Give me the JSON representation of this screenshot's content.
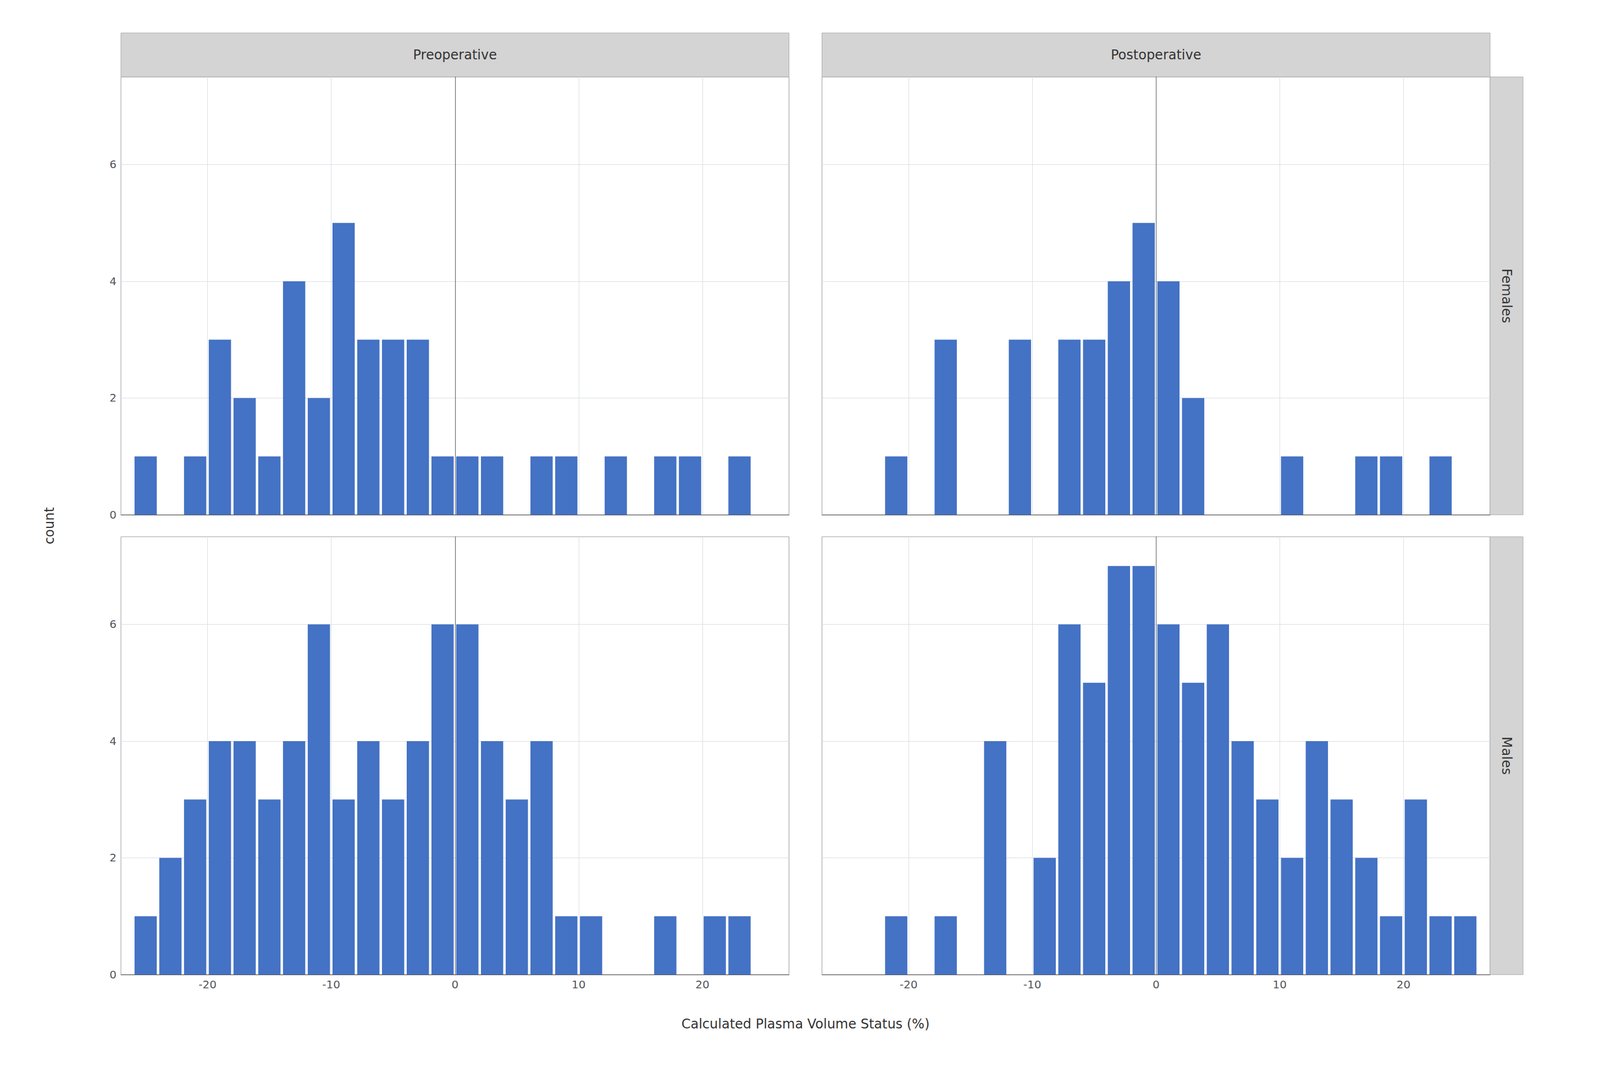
{
  "chart_data": [
    {
      "type": "histogram",
      "title": "Preoperative",
      "ylabel": "count",
      "tick_labels": "y",
      "bins": [
        -26,
        -24,
        -22,
        -20,
        -18,
        -16,
        -14,
        -12,
        -10,
        -8,
        -6,
        -4,
        -2,
        0,
        2,
        4,
        6,
        8,
        10,
        12,
        14,
        16,
        18,
        20,
        22,
        24
      ],
      "values": [
        1,
        0,
        1,
        3,
        2,
        1,
        4,
        2,
        5,
        3,
        3,
        3,
        1,
        1,
        1,
        0,
        1,
        1,
        0,
        1,
        0,
        1,
        1,
        0,
        1
      ],
      "color": "#4472C4",
      "xlim": [
        -27,
        27
      ],
      "ylim": [
        0,
        7.5
      ],
      "xticks": [
        -20,
        -10,
        0,
        10,
        20
      ],
      "yticks": [
        0,
        2,
        4,
        6
      ],
      "grid": true
    },
    {
      "type": "histogram",
      "title": "Postoperative",
      "annotations": [
        "Females"
      ],
      "tick_labels": false,
      "bins": [
        -22,
        -20,
        -18,
        -16,
        -14,
        -12,
        -10,
        -8,
        -6,
        -4,
        -2,
        0,
        2,
        4,
        6,
        8,
        10,
        12,
        14,
        16,
        18,
        20,
        22,
        24
      ],
      "values": [
        1,
        0,
        3,
        0,
        0,
        3,
        0,
        3,
        3,
        4,
        5,
        4,
        2,
        0,
        0,
        0,
        1,
        0,
        0,
        1,
        1,
        0,
        1
      ],
      "color": "#4472C4",
      "xlim": [
        -27,
        27
      ],
      "ylim": [
        0,
        7.5
      ],
      "xticks": [
        -20,
        -10,
        0,
        10,
        20
      ],
      "yticks": [
        0,
        2,
        4,
        6
      ],
      "grid": true
    },
    {
      "type": "histogram",
      "xlabel": "Calculated Plasma Volume Status (%)",
      "tick_labels": true,
      "bins": [
        -26,
        -24,
        -22,
        -20,
        -18,
        -16,
        -14,
        -12,
        -10,
        -8,
        -6,
        -4,
        -2,
        0,
        2,
        4,
        6,
        8,
        10,
        12,
        14,
        16,
        18,
        20,
        22,
        24
      ],
      "values": [
        1,
        2,
        3,
        4,
        4,
        3,
        4,
        6,
        3,
        4,
        3,
        4,
        6,
        6,
        4,
        3,
        4,
        1,
        1,
        0,
        0,
        1,
        0,
        1,
        1
      ],
      "color": "#4472C4",
      "xlim": [
        -27,
        27
      ],
      "ylim": [
        0,
        7.5
      ],
      "xticks": [
        -20,
        -10,
        0,
        10,
        20
      ],
      "yticks": [
        0,
        2,
        4,
        6
      ],
      "grid": true
    },
    {
      "type": "histogram",
      "annotations": [
        "Males"
      ],
      "tick_labels": "x",
      "bins": [
        -22,
        -20,
        -18,
        -16,
        -14,
        -12,
        -10,
        -8,
        -6,
        -4,
        -2,
        0,
        2,
        4,
        6,
        8,
        10,
        12,
        14,
        16,
        18,
        20,
        22,
        24,
        26
      ],
      "values": [
        1,
        0,
        1,
        0,
        4,
        0,
        2,
        6,
        5,
        7,
        7,
        6,
        5,
        6,
        4,
        3,
        2,
        4,
        3,
        2,
        1,
        3,
        1,
        1
      ],
      "color": "#4472C4",
      "xlim": [
        -27,
        27
      ],
      "ylim": [
        0,
        7.5
      ],
      "xticks": [
        -20,
        -10,
        0,
        10,
        20
      ],
      "yticks": [
        0,
        2,
        4,
        6
      ],
      "grid": true
    }
  ]
}
